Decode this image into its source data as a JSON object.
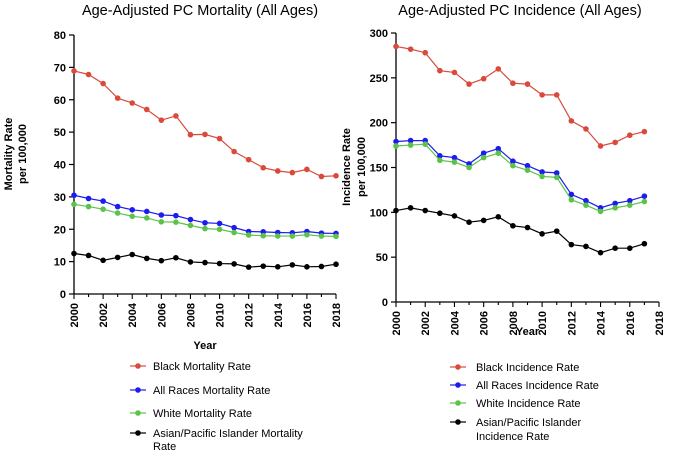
{
  "chart_data": [
    {
      "type": "line",
      "title": "Age-Adjusted PC Mortality (All Ages)",
      "xlabel": "Year",
      "ylabel": "Mortality Rate per 100,000",
      "ylabel_lines": [
        "Mortality Rate",
        "per 100,000"
      ],
      "xlim": [
        2000,
        2018
      ],
      "ylim": [
        0,
        80
      ],
      "xticks": [
        2000,
        2002,
        2004,
        2006,
        2008,
        2010,
        2012,
        2014,
        2016,
        2018
      ],
      "yticks": [
        0,
        10,
        20,
        30,
        40,
        50,
        60,
        70,
        80
      ],
      "x": [
        2000,
        2001,
        2002,
        2003,
        2004,
        2005,
        2006,
        2007,
        2008,
        2009,
        2010,
        2011,
        2012,
        2013,
        2014,
        2015,
        2016,
        2017,
        2018
      ],
      "legend_position": "below",
      "series": [
        {
          "name": "Black Mortality Rate",
          "color": "#d94a3c",
          "values": [
            68.9,
            67.8,
            65.0,
            60.5,
            59.0,
            57.0,
            53.7,
            55.0,
            49.2,
            49.3,
            48.0,
            44.0,
            41.5,
            39.0,
            38.0,
            37.5,
            38.5,
            36.3,
            36.5
          ]
        },
        {
          "name": "All Races Mortality Rate",
          "color": "#1c1cf0",
          "values": [
            30.5,
            29.5,
            28.7,
            27.0,
            26.0,
            25.5,
            24.4,
            24.2,
            23.0,
            22.0,
            21.8,
            20.5,
            19.3,
            19.2,
            19.0,
            18.9,
            19.3,
            18.8,
            18.7
          ]
        },
        {
          "name": "White Mortality Rate",
          "color": "#5cc34a",
          "values": [
            27.7,
            27.0,
            26.2,
            25.0,
            24.0,
            23.5,
            22.3,
            22.2,
            21.2,
            20.2,
            20.0,
            19.0,
            18.2,
            18.0,
            17.9,
            17.9,
            18.3,
            17.9,
            17.8
          ]
        },
        {
          "name": "Asian/Pacific Islander Mortality Rate",
          "color": "#000000",
          "legend_lines": [
            "Asian/Pacific Islander Mortality",
            "Rate"
          ],
          "values": [
            12.5,
            11.9,
            10.4,
            11.3,
            12.2,
            11.0,
            10.3,
            11.2,
            9.9,
            9.7,
            9.4,
            9.3,
            8.3,
            8.6,
            8.4,
            9.0,
            8.4,
            8.5,
            9.2
          ]
        }
      ]
    },
    {
      "type": "line",
      "title": "Age-Adjusted PC Incidence (All Ages)",
      "xlabel": "Year",
      "ylabel": "Incidence Rate per 100,000",
      "ylabel_lines": [
        "Incidence Rate",
        "per 100,000"
      ],
      "xlim": [
        2000,
        2018
      ],
      "ylim": [
        0,
        300
      ],
      "xticks": [
        2000,
        2002,
        2004,
        2006,
        2008,
        2010,
        2012,
        2014,
        2016,
        2018
      ],
      "yticks": [
        0,
        50,
        100,
        150,
        200,
        250,
        300
      ],
      "x": [
        2000,
        2001,
        2002,
        2003,
        2004,
        2005,
        2006,
        2007,
        2008,
        2009,
        2010,
        2011,
        2012,
        2013,
        2014,
        2015,
        2016,
        2017
      ],
      "legend_position": "below",
      "series": [
        {
          "name": "Black Incidence Rate",
          "color": "#d94a3c",
          "values": [
            285,
            282,
            278,
            258,
            256,
            243,
            249,
            260,
            244,
            243,
            231,
            231,
            202,
            193,
            174,
            178,
            186,
            190
          ]
        },
        {
          "name": "All Races Incidence Rate",
          "color": "#1c1cf0",
          "values": [
            179,
            180,
            180,
            163,
            161,
            154,
            166,
            171,
            157,
            152,
            145,
            144,
            120,
            113,
            105,
            110,
            113,
            118
          ]
        },
        {
          "name": "White Incidence Rate",
          "color": "#5cc34a",
          "values": [
            174,
            175,
            176,
            158,
            156,
            150,
            161,
            166,
            152,
            147,
            140,
            139,
            114,
            108,
            101,
            105,
            108,
            112
          ]
        },
        {
          "name": "Asian/Pacific Islander Incidence Rate",
          "color": "#000000",
          "legend_lines": [
            "Asian/Pacific Islander",
            "Incidence Rate"
          ],
          "values": [
            102,
            105,
            102,
            99,
            96,
            89,
            91,
            95,
            85,
            83,
            76,
            79,
            64,
            62,
            55,
            60,
            60,
            65
          ]
        }
      ]
    }
  ]
}
